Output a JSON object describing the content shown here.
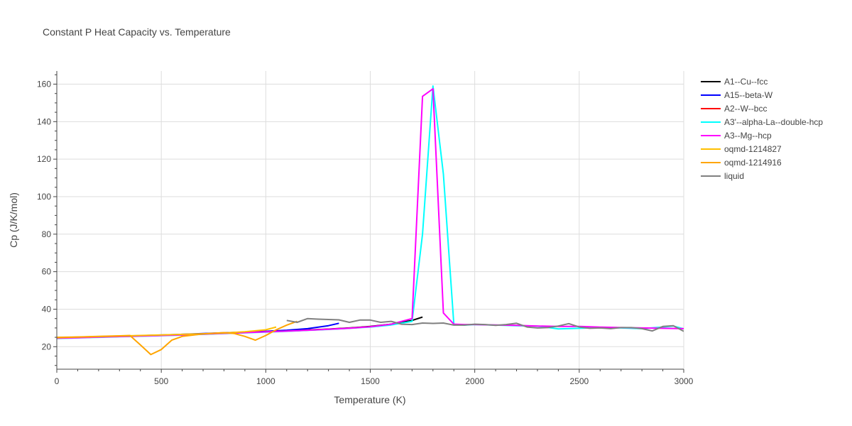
{
  "chart_data": {
    "type": "line",
    "title": "Constant P Heat Capacity vs. Temperature",
    "xlabel": "Temperature (K)",
    "ylabel": "Cp (J/K/mol)",
    "xlim": [
      0,
      3000
    ],
    "ylim": [
      8,
      167
    ],
    "xticks": [
      0,
      500,
      1000,
      1500,
      2000,
      2500,
      3000
    ],
    "yticks": [
      20,
      40,
      60,
      80,
      100,
      120,
      140,
      160
    ],
    "grid": true,
    "legend_position": "top-right",
    "series": [
      {
        "name": "A1--Cu--fcc",
        "color": "#000000",
        "x": [
          0,
          100,
          200,
          300,
          400,
          500,
          600,
          700,
          800,
          900,
          1000,
          1100,
          1200,
          1300,
          1400,
          1500,
          1600,
          1700,
          1750
        ],
        "y": [
          24.6,
          24.9,
          25.2,
          25.5,
          25.8,
          26.1,
          26.4,
          26.8,
          27.2,
          27.6,
          28.0,
          28.4,
          28.9,
          29.4,
          30.0,
          30.8,
          32.0,
          34.0,
          35.8
        ]
      },
      {
        "name": "A15--beta-W",
        "color": "#0000ff",
        "x": [
          0,
          100,
          200,
          300,
          400,
          500,
          600,
          700,
          800,
          900,
          1000,
          1100,
          1200,
          1300,
          1350
        ],
        "y": [
          24.7,
          25.0,
          25.3,
          25.6,
          25.9,
          26.2,
          26.6,
          27.0,
          27.4,
          27.8,
          28.2,
          28.8,
          29.6,
          31.2,
          32.5
        ]
      },
      {
        "name": "A2--W--bcc",
        "color": "#ff0000",
        "x": [
          0,
          100,
          200,
          300,
          400,
          500,
          600,
          700,
          800,
          900,
          1000,
          1100,
          1200,
          1300,
          1400,
          1500
        ],
        "y": [
          24.5,
          24.8,
          25.1,
          25.4,
          25.7,
          26.0,
          26.3,
          26.7,
          27.1,
          27.5,
          27.9,
          28.3,
          28.8,
          29.3,
          29.9,
          30.6
        ]
      },
      {
        "name": "A3'--alpha-La--double-hcp",
        "color": "#00ffff",
        "x": [
          0,
          100,
          200,
          300,
          400,
          500,
          600,
          700,
          800,
          900,
          1000,
          1100,
          1200,
          1300,
          1400,
          1500,
          1600,
          1700,
          1750,
          1800,
          1850,
          1900,
          1950,
          2000,
          2100,
          2200,
          2300,
          2400,
          2500,
          2600,
          2700,
          2800,
          2900,
          2950,
          3000
        ],
        "y": [
          24.4,
          24.7,
          25.0,
          25.3,
          25.6,
          25.9,
          26.2,
          26.6,
          27.0,
          27.4,
          27.8,
          28.2,
          28.7,
          29.2,
          29.8,
          30.5,
          31.6,
          33.5,
          80.0,
          159.0,
          112.0,
          32.0,
          31.5,
          31.8,
          31.5,
          31.2,
          31.0,
          29.5,
          29.8,
          30.2,
          30.0,
          29.6,
          30.5,
          31.0,
          29.5
        ]
      },
      {
        "name": "A3--Mg--hcp",
        "color": "#ff00ff",
        "x": [
          0,
          100,
          200,
          300,
          400,
          500,
          600,
          700,
          800,
          900,
          1000,
          1100,
          1200,
          1300,
          1400,
          1500,
          1600,
          1700,
          1750,
          1800,
          1850,
          1900,
          1950,
          2000,
          2100,
          2200,
          2300,
          2400,
          2500,
          2600,
          2700,
          2800,
          2900,
          3000
        ],
        "y": [
          24.5,
          24.8,
          25.1,
          25.4,
          25.7,
          26.0,
          26.3,
          26.7,
          27.1,
          27.5,
          27.9,
          28.3,
          28.8,
          29.3,
          29.9,
          30.6,
          32.0,
          35.0,
          153.5,
          157.5,
          38.0,
          32.0,
          31.8,
          31.8,
          31.6,
          31.4,
          31.0,
          30.8,
          30.8,
          30.4,
          30.2,
          30.0,
          29.8,
          29.6
        ]
      },
      {
        "name": "oqmd-1214827",
        "color": "#ffbf00",
        "x": [
          0,
          100,
          200,
          300,
          400,
          500,
          600,
          700,
          800,
          900,
          1000,
          1050
        ],
        "y": [
          24.8,
          25.1,
          25.4,
          25.7,
          26.0,
          26.3,
          26.6,
          26.9,
          27.3,
          28.0,
          29.0,
          30.5
        ]
      },
      {
        "name": "oqmd-1214916",
        "color": "#ffa500",
        "x": [
          0,
          100,
          200,
          300,
          350,
          400,
          450,
          500,
          550,
          600,
          700,
          800,
          850,
          900,
          950,
          1000,
          1050,
          1100,
          1150
        ],
        "y": [
          25.0,
          25.2,
          25.5,
          25.8,
          26.0,
          21.0,
          15.8,
          18.5,
          23.5,
          25.5,
          26.8,
          27.5,
          27.0,
          25.5,
          23.5,
          26.0,
          29.0,
          31.5,
          33.5
        ]
      },
      {
        "name": "liquid",
        "color": "#808080",
        "x": [
          1100,
          1150,
          1200,
          1250,
          1300,
          1350,
          1400,
          1450,
          1500,
          1550,
          1600,
          1650,
          1700,
          1750,
          1800,
          1850,
          1900,
          1950,
          2000,
          2050,
          2100,
          2150,
          2200,
          2250,
          2300,
          2350,
          2400,
          2450,
          2500,
          2550,
          2600,
          2650,
          2700,
          2750,
          2800,
          2850,
          2900,
          2950,
          3000
        ],
        "y": [
          34.0,
          33.0,
          35.0,
          34.7,
          34.5,
          34.3,
          33.0,
          34.2,
          34.2,
          33.0,
          33.5,
          32.0,
          31.8,
          32.6,
          32.4,
          32.6,
          31.5,
          31.5,
          32.0,
          31.8,
          31.4,
          31.8,
          32.5,
          30.5,
          30.0,
          30.2,
          31.0,
          32.3,
          30.5,
          29.8,
          30.0,
          29.6,
          30.2,
          30.2,
          29.6,
          28.4,
          30.8,
          31.2,
          28.2
        ]
      }
    ]
  }
}
